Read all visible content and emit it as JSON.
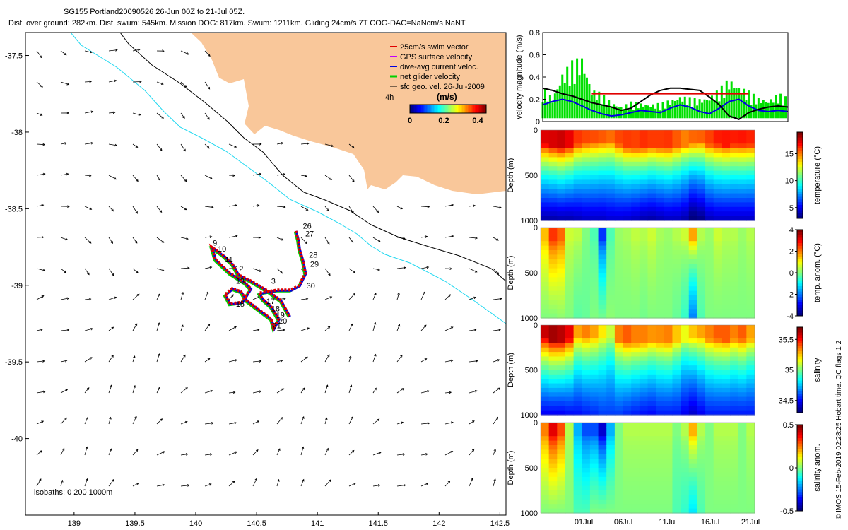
{
  "header": {
    "title": "SG155 Portland20090526 26-Jun 00Z to 21-Jul 05Z.",
    "subtitle": "Dist. over ground: 282km. Dist. swum: 545km. Mission DOG: 817km. Swum: 1211km. Gliding 24cm/s 7T COG-DAC=NaNcm/s NaNT"
  },
  "side_note": "© IMOS 15-Feb-2019 02:28:25 Hobart time. QC flags 1  2",
  "colors": {
    "land": "#f9c79a",
    "isobath_200": "#000000",
    "isobath_1000": "#22d8f0",
    "swim_vector": "#e00000",
    "gps_velocity": "#c000ff",
    "dac_velocity": "#0000e0",
    "net_velocity": "#00d000",
    "geo_velocity": "#000000"
  },
  "chart_data": [
    {
      "id": "map",
      "type": "scatter",
      "title": "SG155 Portland20090526 26-Jun 00Z to 21-Jul 05Z.",
      "xlim": [
        138.6,
        142.55
      ],
      "ylim": [
        -40.5,
        -37.35
      ],
      "xticks": [
        "139",
        "139.5",
        "140",
        "140.5",
        "141",
        "141.5",
        "142",
        "142.5"
      ],
      "yticks": [
        "-37.5",
        "-38",
        "-38.5",
        "-39",
        "-39.5",
        "-40"
      ],
      "legend": [
        {
          "label": "25cm/s swim vector",
          "color": "#e00000"
        },
        {
          "label": "GPS surface velocity",
          "color": "#c000ff"
        },
        {
          "label": "dive-avg current veloc.",
          "color": "#0000e0"
        },
        {
          "label": "net glider velocity",
          "color": "#00d000"
        },
        {
          "label": "sfc geo. vel. 26-Jul-2009",
          "color": "#000000"
        }
      ],
      "legend_position": "top-right",
      "colorbar": {
        "label": "(m/s)",
        "ticks": [
          "0",
          "0.2",
          "0.4"
        ],
        "range": [
          0,
          0.45
        ]
      },
      "vector_scale_label": "4h",
      "isobath_note": "isobaths: 0   200   1000m",
      "track_points": [
        [
          140.77,
          -39.2
        ],
        [
          140.7,
          -39.1
        ],
        [
          140.6,
          -39.04
        ],
        [
          140.45,
          -38.97
        ],
        [
          140.35,
          -38.93
        ],
        [
          140.3,
          -38.86
        ],
        [
          140.22,
          -38.8
        ],
        [
          140.13,
          -38.75
        ],
        [
          140.16,
          -38.83
        ],
        [
          140.28,
          -38.92
        ],
        [
          140.4,
          -38.98
        ],
        [
          140.45,
          -39.02
        ],
        [
          140.38,
          -39.11
        ],
        [
          140.28,
          -39.12
        ],
        [
          140.24,
          -39.06
        ],
        [
          140.3,
          -39.02
        ],
        [
          140.37,
          -39.04
        ],
        [
          140.42,
          -39.1
        ],
        [
          140.52,
          -39.16
        ],
        [
          140.62,
          -39.22
        ],
        [
          140.64,
          -39.28
        ],
        [
          140.68,
          -39.22
        ],
        [
          140.62,
          -39.14
        ],
        [
          140.55,
          -39.09
        ],
        [
          140.52,
          -39.05
        ],
        [
          140.67,
          -39.03
        ],
        [
          140.78,
          -39.03
        ],
        [
          140.85,
          -39.0
        ],
        [
          140.9,
          -38.92
        ],
        [
          140.88,
          -38.84
        ],
        [
          140.85,
          -38.76
        ],
        [
          140.84,
          -38.7
        ],
        [
          140.82,
          -38.64
        ]
      ],
      "dive_labels": [
        {
          "n": "9",
          "x": 140.14,
          "y": -38.74
        },
        {
          "n": "10",
          "x": 140.18,
          "y": -38.78
        },
        {
          "n": "11",
          "x": 140.24,
          "y": -38.85
        },
        {
          "n": "12",
          "x": 140.32,
          "y": -38.91
        },
        {
          "n": "13",
          "x": 140.33,
          "y": -38.99
        },
        {
          "n": "3",
          "x": 140.62,
          "y": -38.99
        },
        {
          "n": "15",
          "x": 140.33,
          "y": -39.14
        },
        {
          "n": "17",
          "x": 140.58,
          "y": -39.12
        },
        {
          "n": "18",
          "x": 140.62,
          "y": -39.17
        },
        {
          "n": "19",
          "x": 140.66,
          "y": -39.21
        },
        {
          "n": "20",
          "x": 140.68,
          "y": -39.25
        },
        {
          "n": "21",
          "x": 140.63,
          "y": -39.28
        },
        {
          "n": "26",
          "x": 140.88,
          "y": -38.63
        },
        {
          "n": "27",
          "x": 140.9,
          "y": -38.68
        },
        {
          "n": "28",
          "x": 140.93,
          "y": -38.82
        },
        {
          "n": "29",
          "x": 140.94,
          "y": -38.88
        },
        {
          "n": "30",
          "x": 140.91,
          "y": -39.02
        }
      ]
    },
    {
      "id": "velocity",
      "type": "line",
      "ylabel": "velocity magnitude (m/s)",
      "ylim": [
        0,
        0.8
      ],
      "yticks": [
        "0",
        "0.2",
        "0.4",
        "0.6",
        "0.8"
      ],
      "x": [
        0,
        1,
        2,
        3,
        4,
        5,
        6,
        7,
        8,
        9,
        10,
        11,
        12,
        13,
        14,
        15,
        16,
        17,
        18,
        19,
        20,
        21,
        22,
        23,
        24,
        25
      ],
      "series": [
        {
          "color": "#00e000",
          "values": [
            0.32,
            0.22,
            0.45,
            0.55,
            0.6,
            0.3,
            0.26,
            0.18,
            0.14,
            0.18,
            0.17,
            0.16,
            0.17,
            0.2,
            0.24,
            0.22,
            0.21,
            0.23,
            0.3,
            0.4,
            0.33,
            0.28,
            0.22,
            0.2,
            0.26,
            0.22
          ]
        },
        {
          "color": "#0000e0",
          "values": [
            0.15,
            0.18,
            0.2,
            0.18,
            0.14,
            0.1,
            0.07,
            0.05,
            0.06,
            0.08,
            0.1,
            0.09,
            0.08,
            0.12,
            0.15,
            0.13,
            0.09,
            0.07,
            0.12,
            0.18,
            0.2,
            0.14,
            0.1,
            0.09,
            0.1,
            0.09
          ]
        },
        {
          "color": "#000000",
          "values": [
            0.3,
            0.28,
            0.25,
            0.23,
            0.2,
            0.17,
            0.15,
            0.13,
            0.1,
            0.12,
            0.18,
            0.24,
            0.28,
            0.3,
            0.3,
            0.29,
            0.28,
            0.22,
            0.15,
            0.05,
            0.02,
            0.08,
            0.11,
            0.13,
            0.14,
            0.13
          ]
        },
        {
          "color": "#e00000",
          "values": [
            null,
            null,
            null,
            null,
            null,
            0.25,
            0.25,
            0.25,
            0.25,
            0.25,
            0.25,
            0.25,
            0.25,
            0.25,
            0.25,
            0.25,
            0.25,
            0.25,
            0.25,
            0.25,
            0.25,
            0.25,
            null,
            null,
            null,
            null
          ]
        }
      ]
    },
    {
      "id": "temperature",
      "type": "heatmap",
      "ylabel": "Depth (m)",
      "ylim": [
        1000,
        0
      ],
      "yticks": [
        "0",
        "500",
        "1000"
      ],
      "colorbar_label": "temperature (°C)",
      "colorbar_ticks": [
        "5",
        "10",
        "15"
      ],
      "crange": [
        3,
        19
      ],
      "surface": [
        17.5,
        17.6,
        17.8,
        17.3,
        16.2,
        15.9,
        15.8,
        15.6,
        15.3,
        15.9,
        16.1,
        16.0,
        16.3,
        16.1,
        16.1,
        16.2,
        15.6,
        15.0,
        15.4,
        15.5,
        16.0,
        16.6,
        16.7,
        16.6,
        16.7,
        16.5
      ],
      "mixed_depth": [
        170,
        190,
        200,
        190,
        170,
        160,
        155,
        150,
        150,
        170,
        200,
        210,
        200,
        190,
        200,
        200,
        190,
        180,
        160,
        150,
        170,
        170,
        180,
        170,
        170,
        170
      ],
      "bottom": [
        3.5,
        3.5,
        3.6,
        3.6,
        3.8,
        4.0,
        4.0,
        4.0,
        4.2,
        4.2,
        4.1,
        3.9,
        3.6,
        3.5,
        3.7,
        3.9,
        3.9,
        3.6,
        2.6,
        3.0,
        3.8,
        4.0,
        4.0,
        4.0,
        4.0,
        4.0
      ]
    },
    {
      "id": "temp_anomaly",
      "type": "heatmap",
      "ylabel": "Depth (m)",
      "ylim": [
        1000,
        0
      ],
      "yticks": [
        "0",
        "500",
        "1000"
      ],
      "colorbar_label": "temp. anom. (°C)",
      "colorbar_ticks": [
        "-4",
        "-2",
        "0",
        "2",
        "4"
      ],
      "crange": [
        -4,
        4
      ],
      "surface": [
        1.5,
        2.6,
        2.2,
        0.6,
        0.5,
        0.0,
        -0.4,
        -2.6,
        -0.4,
        0.2,
        0.3,
        0.5,
        0.4,
        0.6,
        0.3,
        0.2,
        0.4,
        0.6,
        1.7,
        0.4,
        0.2,
        0.6,
        0.4,
        0.4,
        0.2,
        0.4
      ],
      "mixed_depth": [
        150,
        150,
        150,
        140,
        120,
        120,
        120,
        140,
        130,
        130,
        140,
        140,
        150,
        140,
        140,
        140,
        140,
        140,
        140,
        140,
        140,
        140,
        140,
        140,
        140,
        140
      ],
      "bottom": [
        0.0,
        0.0,
        0.1,
        0.0,
        -0.3,
        -0.2,
        0.0,
        -0.1,
        0.1,
        0.0,
        0.0,
        0.0,
        -0.1,
        0.0,
        0.0,
        0.0,
        -0.2,
        -0.6,
        -2.0,
        -0.4,
        0.0,
        0.0,
        0.0,
        0.0,
        0.0,
        0.0
      ]
    },
    {
      "id": "salinity",
      "type": "heatmap",
      "ylabel": "Depth (m)",
      "ylim": [
        1000,
        0
      ],
      "yticks": [
        "0",
        "500",
        "1000"
      ],
      "colorbar_label": "salinity",
      "colorbar_ticks": [
        "34.5",
        "35",
        "35.5"
      ],
      "crange": [
        34.3,
        35.7
      ],
      "surface": [
        35.6,
        35.65,
        35.62,
        35.55,
        35.3,
        35.35,
        35.3,
        35.2,
        35.1,
        35.35,
        35.4,
        35.35,
        35.35,
        35.32,
        35.33,
        35.35,
        35.25,
        35.15,
        35.25,
        35.3,
        35.35,
        35.4,
        35.4,
        35.35,
        35.4,
        35.3
      ],
      "mixed_depth": [
        160,
        180,
        190,
        170,
        150,
        150,
        150,
        150,
        160,
        180,
        200,
        210,
        200,
        190,
        200,
        200,
        190,
        180,
        160,
        150,
        170,
        170,
        180,
        170,
        170,
        170
      ],
      "bottom": [
        34.45,
        34.45,
        34.45,
        34.47,
        34.48,
        34.5,
        34.52,
        34.55,
        34.55,
        34.55,
        34.52,
        34.5,
        34.48,
        34.47,
        34.5,
        34.5,
        34.5,
        34.45,
        34.4,
        34.45,
        34.5,
        34.5,
        34.5,
        34.5,
        34.5,
        34.5
      ]
    },
    {
      "id": "salinity_anomaly",
      "type": "heatmap",
      "ylabel": "Depth (m)",
      "ylim": [
        1000,
        0
      ],
      "yticks": [
        "0",
        "500",
        "1000"
      ],
      "colorbar_label": "salinity anom.",
      "colorbar_ticks": [
        "-0.5",
        "0",
        "0.5"
      ],
      "crange": [
        -0.5,
        0.5
      ],
      "surface": [
        0.25,
        0.4,
        0.3,
        0.05,
        -0.2,
        -0.3,
        -0.3,
        -0.42,
        -0.2,
        0.0,
        0.05,
        0.05,
        0.05,
        0.05,
        0.05,
        0.05,
        0.0,
        0.05,
        0.2,
        0.05,
        0.0,
        0.05,
        0.05,
        0.05,
        0.0,
        0.05
      ],
      "mixed_depth": [
        140,
        140,
        140,
        140,
        130,
        130,
        130,
        140,
        140,
        140,
        140,
        140,
        140,
        140,
        140,
        140,
        140,
        140,
        140,
        140,
        140,
        140,
        140,
        140,
        140,
        140
      ],
      "bottom": [
        0.0,
        0.0,
        0.0,
        0.0,
        -0.05,
        -0.05,
        0.0,
        0.0,
        0.0,
        0.0,
        0.0,
        0.0,
        0.0,
        0.0,
        0.0,
        0.0,
        -0.05,
        -0.08,
        -0.15,
        -0.05,
        0.0,
        0.0,
        0.0,
        0.0,
        0.0,
        0.0
      ]
    }
  ],
  "time_axis": {
    "ticks": [
      "01Jul",
      "06Jul",
      "11Jul",
      "16Jul",
      "21Jul"
    ]
  }
}
